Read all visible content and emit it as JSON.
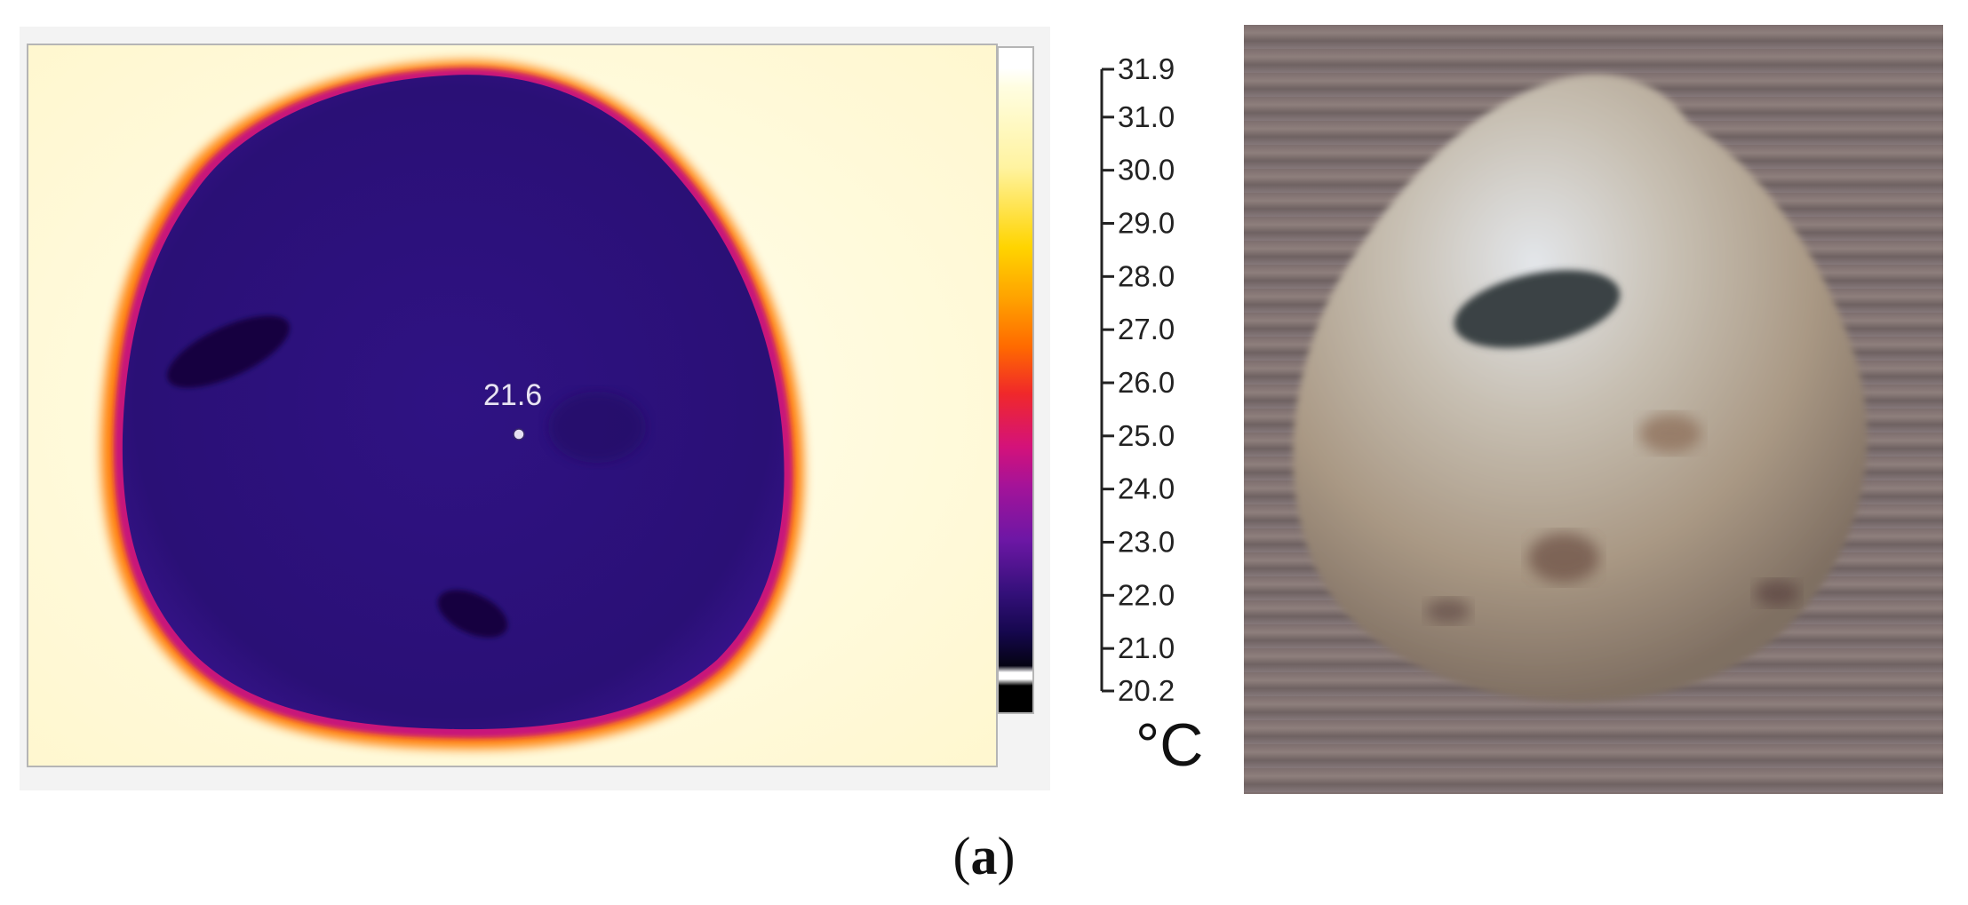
{
  "thermal": {
    "spot_value": "21.6"
  },
  "scale": {
    "ticks": [
      "31.9",
      "31.0",
      "30.0",
      "29.0",
      "28.0",
      "27.0",
      "26.0",
      "25.0",
      "24.0",
      "23.0",
      "22.0",
      "21.0",
      "20.2"
    ],
    "unit": "°C"
  },
  "caption": {
    "open": "(",
    "letter": "a",
    "close": ")"
  },
  "colors": {
    "thermal_cold": "#2a1070",
    "thermal_hot": "#fff9c4",
    "thermal_edge": "#ff8a00"
  }
}
